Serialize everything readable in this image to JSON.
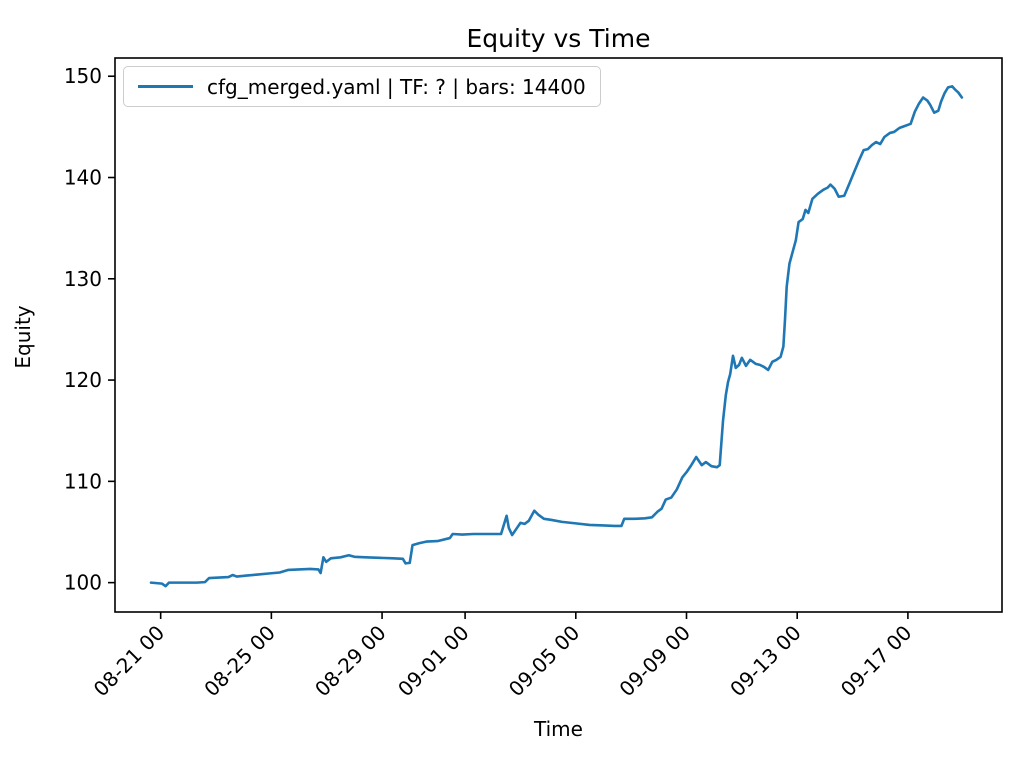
{
  "title": "Equity vs Time",
  "xlabel": "Time",
  "ylabel": "Equity",
  "legend": {
    "label": "cfg_merged.yaml | TF: ? | bars: 14400",
    "line_color": "#1f77b4",
    "position": "upper left"
  },
  "colors": {
    "line": "#1f77b4",
    "axis": "#000000",
    "background": "#ffffff",
    "legend_border": "#cccccc"
  },
  "chart_data": {
    "type": "line",
    "title": "Equity vs Time",
    "xlabel": "Time",
    "ylabel": "Equity",
    "grid": false,
    "legend_position": "upper left",
    "x_unit": "days since 08-21 00:00",
    "xlim": [
      -1.65,
      30.4
    ],
    "ylim": [
      97.1,
      151.8
    ],
    "y_ticks": [
      100,
      110,
      120,
      130,
      140,
      150
    ],
    "x_ticks": [
      {
        "t": 0,
        "label": "08-21 00"
      },
      {
        "t": 4,
        "label": "08-25 00"
      },
      {
        "t": 8,
        "label": "08-29 00"
      },
      {
        "t": 11,
        "label": "09-01 00"
      },
      {
        "t": 15,
        "label": "09-05 00"
      },
      {
        "t": 19,
        "label": "09-09 00"
      },
      {
        "t": 23,
        "label": "09-13 00"
      },
      {
        "t": 27,
        "label": "09-17 00"
      }
    ],
    "series": [
      {
        "name": "cfg_merged.yaml | TF: ? | bars: 14400",
        "color": "#1f77b4",
        "points": [
          [
            -0.35,
            100.0
          ],
          [
            -0.15,
            99.95
          ],
          [
            0.05,
            99.9
          ],
          [
            0.18,
            99.65
          ],
          [
            0.3,
            100.0
          ],
          [
            0.8,
            100.0
          ],
          [
            1.3,
            100.0
          ],
          [
            1.6,
            100.05
          ],
          [
            1.75,
            100.45
          ],
          [
            2.1,
            100.5
          ],
          [
            2.45,
            100.55
          ],
          [
            2.6,
            100.75
          ],
          [
            2.75,
            100.6
          ],
          [
            3.1,
            100.7
          ],
          [
            3.5,
            100.8
          ],
          [
            3.9,
            100.9
          ],
          [
            4.3,
            101.0
          ],
          [
            4.6,
            101.25
          ],
          [
            5.0,
            101.3
          ],
          [
            5.4,
            101.35
          ],
          [
            5.7,
            101.3
          ],
          [
            5.78,
            100.95
          ],
          [
            5.88,
            102.5
          ],
          [
            5.98,
            102.05
          ],
          [
            6.15,
            102.4
          ],
          [
            6.5,
            102.5
          ],
          [
            6.8,
            102.7
          ],
          [
            7.0,
            102.55
          ],
          [
            7.4,
            102.5
          ],
          [
            7.9,
            102.45
          ],
          [
            8.4,
            102.4
          ],
          [
            8.75,
            102.35
          ],
          [
            8.85,
            101.9
          ],
          [
            9.0,
            101.95
          ],
          [
            9.1,
            103.7
          ],
          [
            9.35,
            103.9
          ],
          [
            9.6,
            104.05
          ],
          [
            10.0,
            104.1
          ],
          [
            10.45,
            104.4
          ],
          [
            10.55,
            104.8
          ],
          [
            10.9,
            104.75
          ],
          [
            11.3,
            104.8
          ],
          [
            11.8,
            104.8
          ],
          [
            12.3,
            104.8
          ],
          [
            12.5,
            106.6
          ],
          [
            12.58,
            105.4
          ],
          [
            12.7,
            104.7
          ],
          [
            12.85,
            105.3
          ],
          [
            13.0,
            105.9
          ],
          [
            13.15,
            105.8
          ],
          [
            13.3,
            106.1
          ],
          [
            13.5,
            107.1
          ],
          [
            13.65,
            106.7
          ],
          [
            13.85,
            106.3
          ],
          [
            14.1,
            106.2
          ],
          [
            14.5,
            106.0
          ],
          [
            15.0,
            105.85
          ],
          [
            15.5,
            105.7
          ],
          [
            16.0,
            105.65
          ],
          [
            16.4,
            105.6
          ],
          [
            16.65,
            105.6
          ],
          [
            16.75,
            106.3
          ],
          [
            17.1,
            106.3
          ],
          [
            17.5,
            106.35
          ],
          [
            17.75,
            106.45
          ],
          [
            17.95,
            107.0
          ],
          [
            18.1,
            107.3
          ],
          [
            18.25,
            108.2
          ],
          [
            18.45,
            108.4
          ],
          [
            18.65,
            109.2
          ],
          [
            18.85,
            110.4
          ],
          [
            19.0,
            110.9
          ],
          [
            19.15,
            111.5
          ],
          [
            19.35,
            112.4
          ],
          [
            19.55,
            111.6
          ],
          [
            19.7,
            111.9
          ],
          [
            19.9,
            111.5
          ],
          [
            20.1,
            111.4
          ],
          [
            20.2,
            111.6
          ],
          [
            20.32,
            116.0
          ],
          [
            20.42,
            118.5
          ],
          [
            20.5,
            119.8
          ],
          [
            20.58,
            120.6
          ],
          [
            20.68,
            122.4
          ],
          [
            20.78,
            121.2
          ],
          [
            20.9,
            121.5
          ],
          [
            21.0,
            122.2
          ],
          [
            21.15,
            121.4
          ],
          [
            21.3,
            122.0
          ],
          [
            21.5,
            121.6
          ],
          [
            21.65,
            121.5
          ],
          [
            21.8,
            121.3
          ],
          [
            21.95,
            121.0
          ],
          [
            22.1,
            121.8
          ],
          [
            22.25,
            122.0
          ],
          [
            22.4,
            122.3
          ],
          [
            22.5,
            123.3
          ],
          [
            22.56,
            126.0
          ],
          [
            22.62,
            129.2
          ],
          [
            22.72,
            131.5
          ],
          [
            22.85,
            132.8
          ],
          [
            22.95,
            133.8
          ],
          [
            23.05,
            135.6
          ],
          [
            23.2,
            135.9
          ],
          [
            23.3,
            136.8
          ],
          [
            23.4,
            136.5
          ],
          [
            23.55,
            137.9
          ],
          [
            23.75,
            138.4
          ],
          [
            23.95,
            138.8
          ],
          [
            24.1,
            139.0
          ],
          [
            24.2,
            139.3
          ],
          [
            24.35,
            138.9
          ],
          [
            24.5,
            138.1
          ],
          [
            24.7,
            138.2
          ],
          [
            24.9,
            139.5
          ],
          [
            25.05,
            140.5
          ],
          [
            25.25,
            141.8
          ],
          [
            25.4,
            142.7
          ],
          [
            25.55,
            142.8
          ],
          [
            25.7,
            143.2
          ],
          [
            25.85,
            143.5
          ],
          [
            26.0,
            143.3
          ],
          [
            26.15,
            144.0
          ],
          [
            26.35,
            144.4
          ],
          [
            26.5,
            144.5
          ],
          [
            26.7,
            144.9
          ],
          [
            26.9,
            145.1
          ],
          [
            27.1,
            145.3
          ],
          [
            27.25,
            146.5
          ],
          [
            27.4,
            147.3
          ],
          [
            27.55,
            147.9
          ],
          [
            27.7,
            147.6
          ],
          [
            27.8,
            147.2
          ],
          [
            27.95,
            146.4
          ],
          [
            28.1,
            146.6
          ],
          [
            28.2,
            147.5
          ],
          [
            28.32,
            148.3
          ],
          [
            28.45,
            148.9
          ],
          [
            28.6,
            149.0
          ],
          [
            28.7,
            148.7
          ],
          [
            28.82,
            148.4
          ],
          [
            28.95,
            147.9
          ]
        ]
      }
    ]
  }
}
